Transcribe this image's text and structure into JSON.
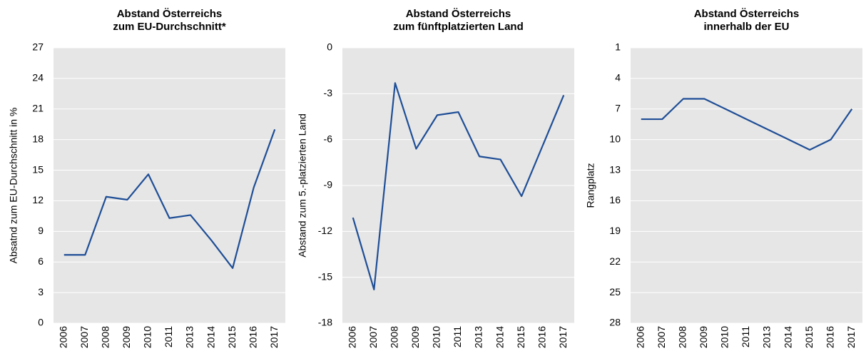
{
  "chart_data": [
    {
      "type": "line",
      "title": [
        "Abstand Österreichs",
        "zum EU-Durchschnitt*"
      ],
      "y_label": "Absatnd zum EU-Durchschnitt in %",
      "categories": [
        "2006",
        "2007",
        "2008",
        "2009",
        "2010",
        "2011",
        "2013",
        "2014",
        "2015",
        "2016",
        "2017"
      ],
      "values": [
        6.7,
        6.7,
        12.4,
        12.1,
        14.6,
        10.3,
        10.6,
        8.1,
        5.4,
        13.3,
        19.0
      ],
      "color": "#1f4e96",
      "ylim": [
        0,
        27
      ],
      "yticks": [
        0,
        3,
        6,
        9,
        12,
        15,
        18,
        21,
        24,
        27
      ],
      "grid": true
    },
    {
      "type": "line",
      "title": [
        "Abstand Österreichs",
        "zum fünftplatzierten Land"
      ],
      "y_label": "Abstand zum 5.-platzierten Land",
      "categories": [
        "2006",
        "2007",
        "2008",
        "2009",
        "2010",
        "2011",
        "2013",
        "2014",
        "2015",
        "2016",
        "2017"
      ],
      "values": [
        -11.1,
        -15.8,
        -2.3,
        -6.6,
        -4.4,
        -4.2,
        -7.1,
        -7.3,
        -9.7,
        -6.4,
        -3.1
      ],
      "color": "#1f4e96",
      "ylim": [
        -18,
        0
      ],
      "yticks": [
        -18,
        -15,
        -12,
        -9,
        -6,
        -3,
        0
      ],
      "grid": true
    },
    {
      "type": "line",
      "title": [
        "Abstand Österreichs",
        "innerhalb der EU"
      ],
      "y_label": "Rangplatz",
      "categories": [
        "2006",
        "2007",
        "2008",
        "2009",
        "2010",
        "2011",
        "2013",
        "2014",
        "2015",
        "2016",
        "2017"
      ],
      "values": [
        8,
        8,
        6,
        6,
        7,
        8,
        9,
        10,
        11,
        10,
        7
      ],
      "color": "#1f4e96",
      "ylim": [
        28,
        1
      ],
      "yticks": [
        1,
        4,
        7,
        10,
        13,
        16,
        19,
        22,
        25,
        28
      ],
      "grid": true
    }
  ]
}
